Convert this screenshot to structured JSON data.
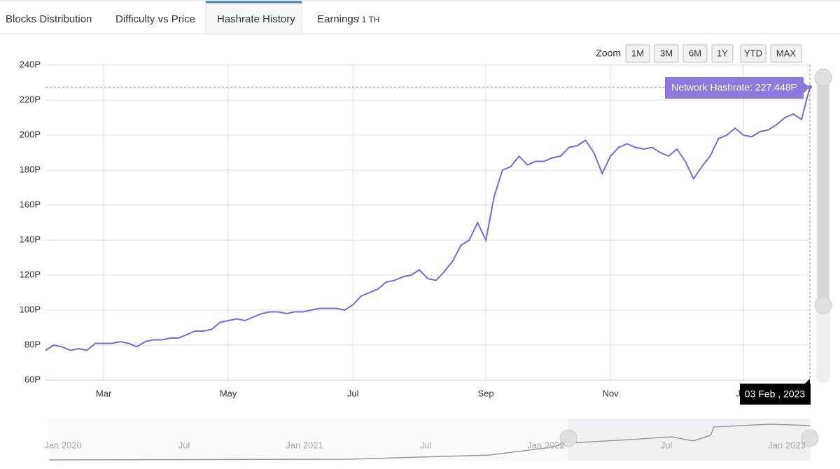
{
  "tabs": [
    "Blocks Distribution",
    "Difficulty vs Price",
    "Hashrate History",
    "Earnings"
  ],
  "tab_suffix": "/ 1 TH",
  "zoom": {
    "label": "Zoom",
    "buttons": [
      "1M",
      "3M",
      "6M",
      "1Y",
      "YTD",
      "MAX"
    ]
  },
  "tooltip": {
    "text": "Network Hashrate: 227.448P",
    "date": "03 Feb , 2023"
  },
  "navigator": {
    "labels": [
      "Jan 2020",
      "Jul",
      "Jan 2021",
      "Jul",
      "Jan 2022",
      "Jul",
      "Jan 2023"
    ]
  },
  "chart_data": {
    "type": "line",
    "color": "#7b68d4",
    "grid": true,
    "categories": [
      null,
      null,
      null,
      null,
      null,
      null,
      null,
      "Mar",
      null,
      null,
      null,
      null,
      null,
      null,
      null,
      null,
      null,
      null,
      null,
      null,
      null,
      null,
      "May",
      null,
      null,
      null,
      null,
      null,
      null,
      null,
      null,
      null,
      null,
      null,
      null,
      null,
      null,
      "Jul",
      null,
      null,
      null,
      null,
      null,
      null,
      null,
      null,
      null,
      null,
      null,
      null,
      null,
      null,
      null,
      "Sep",
      null,
      null,
      null,
      null,
      null,
      null,
      null,
      null,
      null,
      null,
      null,
      null,
      null,
      null,
      "Nov",
      null,
      null,
      null,
      null,
      null,
      null,
      null,
      null,
      null,
      null,
      null,
      null,
      null,
      null,
      null,
      "Jan",
      null,
      null,
      null,
      null,
      null,
      null,
      null,
      null
    ],
    "values": [
      77,
      80,
      79,
      77,
      78,
      77,
      81,
      81,
      81,
      82,
      81,
      79,
      82,
      83,
      83,
      84,
      84,
      86,
      88,
      88,
      89,
      93,
      94,
      95,
      94,
      96,
      98,
      99,
      99,
      98,
      99,
      99,
      100,
      101,
      101,
      101,
      100,
      103,
      108,
      110,
      112,
      116,
      117,
      119,
      120,
      123,
      118,
      117,
      122,
      128,
      137,
      140,
      150,
      140,
      165,
      180,
      182,
      188,
      183,
      185,
      185,
      187,
      188,
      193,
      194,
      197,
      190,
      178,
      188,
      193,
      195,
      193,
      192,
      193,
      190,
      188,
      192,
      185,
      175,
      182,
      188,
      198,
      200,
      204,
      200,
      199,
      202,
      203,
      206,
      210,
      212,
      209,
      227.448
    ],
    "ylim": [
      60,
      240
    ],
    "yticks": [
      {
        "value": 60,
        "label": "60P"
      },
      {
        "value": 80,
        "label": "80P"
      },
      {
        "value": 100,
        "label": "100P"
      },
      {
        "value": 120,
        "label": "120P"
      },
      {
        "value": 140,
        "label": "140P"
      },
      {
        "value": 160,
        "label": "160P"
      },
      {
        "value": 180,
        "label": "180P"
      },
      {
        "value": 200,
        "label": "200P"
      },
      {
        "value": 220,
        "label": "220P"
      },
      {
        "value": 240,
        "label": "240P"
      }
    ]
  }
}
